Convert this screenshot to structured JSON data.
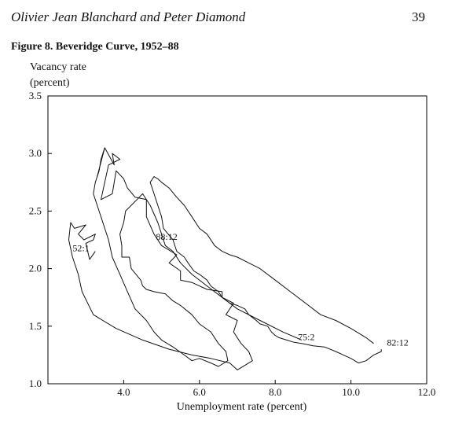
{
  "header": {
    "authors": "Olivier Jean Blanchard and Peter Diamond",
    "page_number": "39"
  },
  "figure_caption": "Figure 8.  Beveridge Curve, 1952–88",
  "chart_data": {
    "type": "line",
    "title": "Figure 8.  Beveridge Curve, 1952–88",
    "ylabel_line1": "Vacancy rate",
    "ylabel_line2": "(percent)",
    "xlabel": "Unemployment rate (percent)",
    "xlim": [
      2.0,
      12.0
    ],
    "ylim": [
      1.0,
      3.5
    ],
    "x_ticks": [
      {
        "value": 4.0,
        "label": "4.0"
      },
      {
        "value": 6.0,
        "label": "6.0"
      },
      {
        "value": 8.0,
        "label": "8.0"
      },
      {
        "value": 10.0,
        "label": "10.0"
      },
      {
        "value": 12.0,
        "label": "12.0"
      }
    ],
    "y_ticks": [
      {
        "value": 1.0,
        "label": "1.0"
      },
      {
        "value": 1.5,
        "label": "1.5"
      },
      {
        "value": 2.0,
        "label": "2.0"
      },
      {
        "value": 2.5,
        "label": "2.5"
      },
      {
        "value": 3.0,
        "label": "3.0"
      },
      {
        "value": 3.5,
        "label": "3.5"
      }
    ],
    "grid": false,
    "series": [
      {
        "x": [
          3.25,
          3.1,
          3.0,
          3.2,
          3.25,
          2.95,
          2.8,
          3.0,
          2.7,
          2.6,
          2.55,
          2.65,
          2.8,
          2.9,
          3.2,
          3.8,
          4.5,
          5.2,
          5.8,
          6.3,
          6.8,
          7.0,
          7.4,
          7.3,
          7.1,
          6.9,
          7.0,
          6.7,
          6.9,
          6.6,
          6.6,
          6.2,
          6.0,
          5.8,
          5.5,
          5.5,
          5.2,
          5.4,
          5.0,
          4.8,
          4.6,
          4.6,
          4.3,
          4.1,
          4.0,
          3.8,
          3.7,
          3.4,
          3.5,
          3.6,
          3.9,
          3.7,
          3.75,
          3.5,
          3.3
        ],
        "y": [
          2.15,
          2.08,
          2.22,
          2.25,
          2.3,
          2.25,
          2.3,
          2.38,
          2.35,
          2.4,
          2.25,
          2.1,
          1.95,
          1.8,
          1.6,
          1.48,
          1.38,
          1.3,
          1.25,
          1.22,
          1.18,
          1.12,
          1.2,
          1.28,
          1.35,
          1.45,
          1.55,
          1.6,
          1.7,
          1.75,
          1.8,
          1.82,
          1.85,
          1.88,
          1.9,
          1.98,
          2.05,
          2.12,
          2.2,
          2.3,
          2.45,
          2.6,
          2.62,
          2.7,
          2.78,
          2.85,
          2.65,
          2.6,
          2.75,
          2.9,
          2.95,
          3.0,
          2.9,
          3.05,
          2.8
        ]
      },
      {
        "x": [
          8.7,
          8.2,
          7.6,
          7.0,
          6.6,
          6.2,
          5.8,
          5.5,
          5.3,
          5.1,
          5.0,
          4.9,
          4.7,
          4.5,
          4.35,
          4.2,
          4.05,
          4.0,
          3.9,
          3.95,
          3.95,
          4.15,
          4.2,
          4.45,
          4.5,
          4.6,
          4.8,
          5.1,
          5.3,
          5.5,
          5.8,
          6.0,
          6.3,
          6.5,
          6.7,
          6.75,
          6.5,
          6.3,
          6.0,
          5.8,
          5.6,
          5.3,
          5.0,
          4.8,
          4.6,
          4.3,
          4.1,
          3.9,
          3.7,
          3.6,
          3.5,
          3.4,
          3.3,
          3.2,
          3.25,
          3.35,
          3.4,
          3.5
        ],
        "y": [
          1.38,
          1.45,
          1.55,
          1.65,
          1.75,
          1.85,
          1.95,
          2.05,
          2.15,
          2.2,
          2.3,
          2.4,
          2.55,
          2.65,
          2.6,
          2.55,
          2.5,
          2.4,
          2.3,
          2.2,
          2.1,
          2.1,
          2.0,
          1.9,
          1.85,
          1.82,
          1.8,
          1.78,
          1.72,
          1.68,
          1.6,
          1.52,
          1.45,
          1.35,
          1.28,
          1.2,
          1.15,
          1.18,
          1.22,
          1.2,
          1.25,
          1.32,
          1.38,
          1.45,
          1.55,
          1.65,
          1.8,
          1.95,
          2.1,
          2.25,
          2.35,
          2.45,
          2.55,
          2.65,
          2.75,
          2.85,
          2.95,
          3.05
        ]
      },
      {
        "x": [
          10.6,
          10.4,
          10.0,
          9.6,
          9.2,
          8.8,
          8.4,
          8.0,
          7.6,
          7.3,
          7.0,
          6.8,
          6.6,
          6.4,
          6.2,
          6.0,
          5.8,
          5.6,
          5.4,
          5.2,
          5.0,
          4.9,
          4.8,
          4.7,
          4.75,
          4.8,
          4.9,
          5.0,
          5.05,
          5.3,
          5.4,
          5.6,
          5.7,
          5.85,
          6.0,
          6.2,
          6.3,
          6.5,
          6.6,
          6.8,
          7.0,
          7.2,
          7.3,
          7.5,
          7.6,
          7.8,
          7.9,
          8.0,
          8.1,
          8.3,
          8.5,
          8.7,
          9.0,
          9.3,
          9.6,
          9.8,
          10.0,
          10.2,
          10.4,
          10.6,
          10.8,
          10.8
        ],
        "y": [
          1.35,
          1.4,
          1.48,
          1.55,
          1.6,
          1.7,
          1.8,
          1.9,
          2.0,
          2.05,
          2.1,
          2.12,
          2.15,
          2.2,
          2.3,
          2.35,
          2.45,
          2.55,
          2.62,
          2.7,
          2.75,
          2.78,
          2.8,
          2.75,
          2.7,
          2.65,
          2.55,
          2.45,
          2.35,
          2.25,
          2.15,
          2.1,
          2.05,
          1.98,
          1.95,
          1.9,
          1.85,
          1.8,
          1.75,
          1.7,
          1.68,
          1.65,
          1.6,
          1.55,
          1.52,
          1.5,
          1.45,
          1.42,
          1.4,
          1.38,
          1.36,
          1.35,
          1.33,
          1.32,
          1.28,
          1.25,
          1.22,
          1.18,
          1.2,
          1.25,
          1.28,
          1.3
        ]
      }
    ],
    "annotations": [
      {
        "text": "52:1",
        "x": 2.65,
        "y": 2.15
      },
      {
        "text": "88:12",
        "x": 4.85,
        "y": 2.25
      },
      {
        "text": "75:2",
        "x": 8.6,
        "y": 1.38
      },
      {
        "text": "82:12",
        "x": 10.95,
        "y": 1.33
      }
    ]
  }
}
